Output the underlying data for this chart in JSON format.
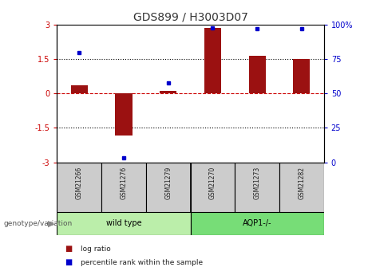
{
  "title": "GDS899 / H3003D07",
  "samples": [
    "GSM21266",
    "GSM21276",
    "GSM21279",
    "GSM21270",
    "GSM21273",
    "GSM21282"
  ],
  "log_ratios": [
    0.35,
    -1.85,
    0.1,
    2.85,
    1.65,
    1.5
  ],
  "percentile_ranks": [
    80,
    3,
    58,
    98,
    97,
    97
  ],
  "ylim_left": [
    -3,
    3
  ],
  "yticks_left": [
    -3,
    -1.5,
    0,
    1.5,
    3
  ],
  "ytick_labels_left": [
    "-3",
    "-1.5",
    "0",
    "1.5",
    "3"
  ],
  "ylim_right": [
    0,
    100
  ],
  "yticks_right": [
    0,
    25,
    50,
    75,
    100
  ],
  "ytick_labels_right": [
    "0",
    "25",
    "50",
    "75",
    "100%"
  ],
  "bar_color": "#9B1111",
  "dot_color": "#0000CC",
  "hline_color": "#CC0000",
  "dotted_line_color": "#000000",
  "wild_type_label": "wild type",
  "aqp1_label": "AQP1-/-",
  "genotype_label": "genotype/variation",
  "legend_log_ratio": "log ratio",
  "legend_percentile": "percentile rank within the sample",
  "bg_color": "#FFFFFF",
  "plot_bg_color": "#FFFFFF",
  "sample_box_color": "#CCCCCC",
  "wild_type_box_color": "#BBEEAA",
  "aqp1_box_color": "#77DD77"
}
